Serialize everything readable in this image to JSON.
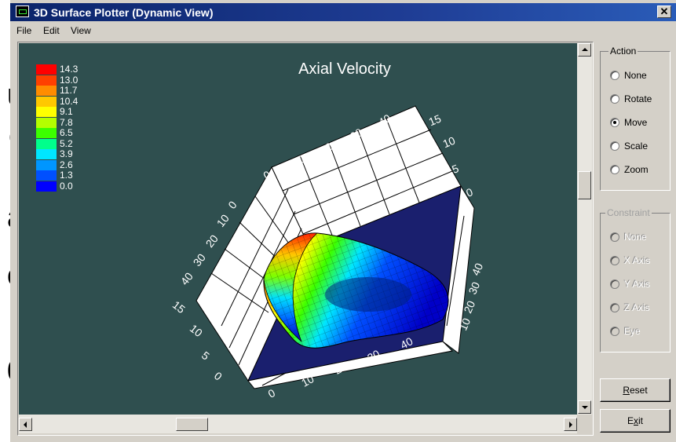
{
  "background_text": [
    "u",
    "c",
    "r",
    "a",
    "o",
    "t",
    "0",
    "r"
  ],
  "window": {
    "title": "3D Surface Plotter (Dynamic View)",
    "close_glyph": "✕",
    "colors": {
      "titlebar": "#0a246a",
      "face": "#d4d0c8",
      "plot_bg": "#2f4f4f"
    }
  },
  "menu": [
    "File",
    "Edit",
    "View"
  ],
  "plot": {
    "title": "Axial Velocity",
    "legend": {
      "values": [
        "14.3",
        "13.0",
        "11.7",
        "10.4",
        "9.1",
        "7.8",
        "6.5",
        "5.2",
        "3.9",
        "2.6",
        "1.3",
        "0.0"
      ],
      "colors": [
        "#ff0000",
        "#ff4000",
        "#ff8c00",
        "#ffc800",
        "#ffff00",
        "#b4ff00",
        "#3cff00",
        "#00ff8c",
        "#00e6ff",
        "#0096ff",
        "#0050ff",
        "#0000ff"
      ]
    },
    "axes": {
      "top_ticks": [
        "0",
        "10",
        "20",
        "30",
        "40"
      ],
      "right_upper_ticks": [
        "15",
        "10",
        "5",
        "0"
      ],
      "left_ticks": [
        "0",
        "10",
        "20",
        "30",
        "40"
      ],
      "left_lower_ticks": [
        "15",
        "10",
        "5",
        "0"
      ],
      "bottom_ticks": [
        "0",
        "10",
        "20",
        "30",
        "40"
      ],
      "right_lower_ticks": [
        "0",
        "10",
        "20",
        "30",
        "40"
      ]
    }
  },
  "action_group": {
    "title": "Action",
    "options": [
      "None",
      "Rotate",
      "Move",
      "Scale",
      "Zoom"
    ],
    "selected": "Move"
  },
  "constraint_group": {
    "title": "Constraint",
    "options": [
      "None",
      "X Axis",
      "Y Axis",
      "Z Axis",
      "Eye"
    ],
    "selected": "None",
    "enabled": false
  },
  "buttons": {
    "reset": {
      "mnemonic": "R",
      "rest": "eset"
    },
    "exit": {
      "pre": "E",
      "mnemonic": "x",
      "rest": "it"
    }
  }
}
